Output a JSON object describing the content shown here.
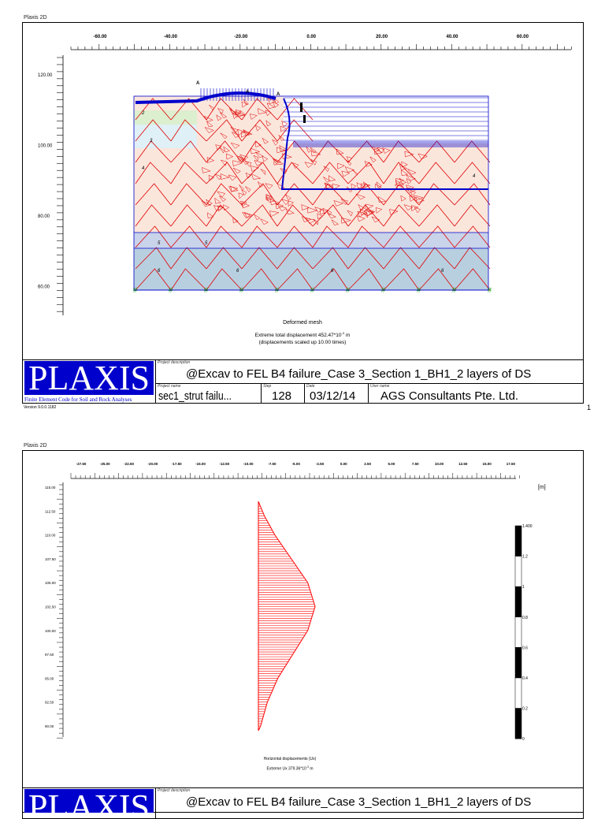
{
  "page1": {
    "app_label": "Plaxis 2D",
    "x_ticks": [
      "-60.00",
      "-40.00",
      "-20.00",
      "0.00",
      "20.00",
      "40.00",
      "60.00"
    ],
    "y_ticks": [
      "120.00",
      "100.00",
      "80.00",
      "60.00"
    ],
    "marker_labels": [
      "A",
      "A",
      "A"
    ],
    "caption_title": "Deformed mesh",
    "caption_line1": "Extreme total displacement 452.47*10",
    "caption_exp": "-3",
    "caption_unit": " m",
    "caption_line2": "(displacements scaled up 10.00 times)",
    "logo_text": "PLAXIS",
    "logo_sub": "Finite Element Code for Soil and Rock Analyses",
    "version": "Version 9.0.0.1182",
    "project_description_label": "Project description",
    "project_description": "@Excav to FEL B4 failure_Case 3_Section 1_BH1_2 layers of DS",
    "project_name_label": "Project name",
    "project_name": "sec1_strut failu...",
    "step_label": "Step",
    "step": "128",
    "date_label": "Date",
    "date": "03/12/14",
    "user_label": "User name",
    "user": "AGS Consultants Pte. Ltd.",
    "page_number": "1",
    "cluster_labels": [
      "2",
      "3",
      "4",
      "5",
      "6"
    ]
  },
  "page2": {
    "app_label": "Plaxis 2D",
    "x_ticks": [
      "-27.50",
      "-25.00",
      "-22.50",
      "-20.00",
      "-17.50",
      "-15.00",
      "-12.50",
      "-10.00",
      "-7.50",
      "-5.00",
      "-2.50",
      "0.00",
      "2.50",
      "5.00",
      "7.50",
      "10.00",
      "12.50",
      "15.00",
      "17.50"
    ],
    "y_ticks": [
      "115.00",
      "112.50",
      "110.00",
      "107.50",
      "105.00",
      "102.50",
      "100.00",
      "97.50",
      "95.00",
      "92.50",
      "90.00"
    ],
    "unit_label": "[m]",
    "legend_ticks": [
      "1.400",
      "1.2",
      "1",
      "0.8",
      "0.6",
      "0.4",
      "0.2",
      "0"
    ],
    "caption_title": "Horizontal displacements (Ux)",
    "caption_line1": "Extreme Ux 379.36*10",
    "caption_exp": "-3",
    "caption_unit": " m",
    "logo_text": "PLAXIS",
    "project_description_label": "Project description",
    "project_description": "@Excav to FEL B4 failure_Case 3_Section 1_BH1_2 layers of DS",
    "chart_data": {
      "type": "area",
      "title": "Horizontal displacements (Ux)",
      "ylabel": "",
      "xlabel": "",
      "ylim": [
        88,
        116
      ],
      "xlim": [
        -28.5,
        19
      ],
      "max_abs_ux_m": 0.37936,
      "points": [
        [
          113.5,
          0
        ],
        [
          112,
          0.04
        ],
        [
          110,
          0.11
        ],
        [
          107.5,
          0.22
        ],
        [
          105,
          0.33
        ],
        [
          102.5,
          0.379
        ],
        [
          100,
          0.33
        ],
        [
          97.5,
          0.23
        ],
        [
          95,
          0.13
        ],
        [
          92.5,
          0.06
        ],
        [
          90,
          0.015
        ],
        [
          89.5,
          0
        ]
      ],
      "color": "#ff0000"
    }
  },
  "colors": {
    "mesh": "#e00000",
    "structure": "#0000cc",
    "soil_upper": "#fbe6dc",
    "soil_5": "#c9d3ea",
    "soil_6": "#b8cfe0",
    "soil_2": "#dcefcf",
    "soil_3": "#dff0f6",
    "logo": "#0000cc"
  }
}
